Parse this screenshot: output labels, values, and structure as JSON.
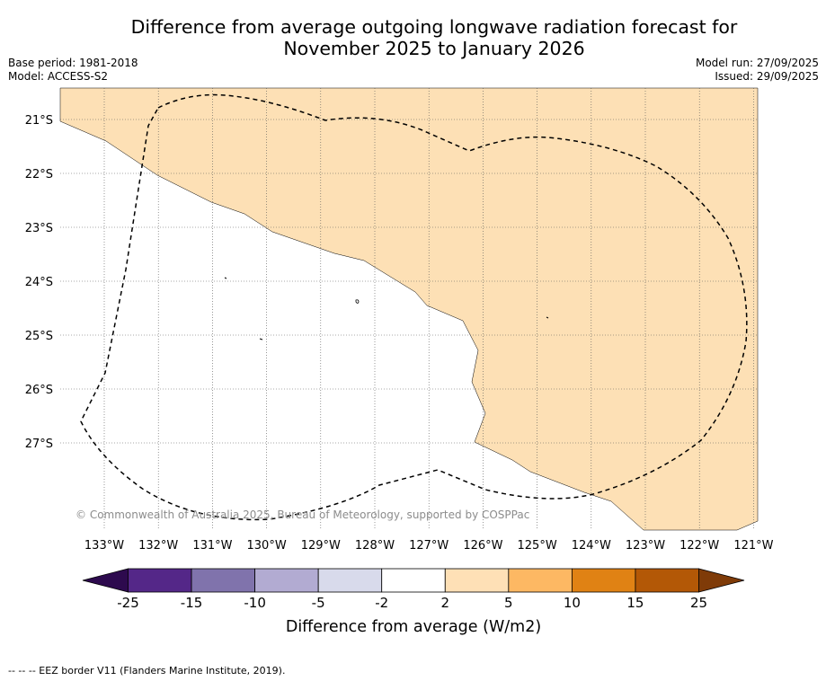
{
  "title": {
    "line1": "Difference from average outgoing longwave radiation forecast for",
    "line2": "November 2025 to January 2026"
  },
  "meta": {
    "base_period": "Base period: 1981-2018",
    "model": "Model: ACCESS-S2",
    "model_run": "Model run: 27/09/2025",
    "issued": "Issued: 29/09/2025"
  },
  "map": {
    "lat_labels": [
      "21°S",
      "22°S",
      "23°S",
      "24°S",
      "25°S",
      "26°S",
      "27°S"
    ],
    "lon_labels": [
      "133°W",
      "132°W",
      "131°W",
      "130°W",
      "129°W",
      "128°W",
      "127°W",
      "126°W",
      "125°W",
      "124°W",
      "123°W",
      "122°W",
      "121°W"
    ],
    "copyright": "© Commonwealth of Australia 2025, Bureau of Meteorology, supported by COSPPac",
    "anomaly_region_color": "#fde0b5",
    "anomaly_region_category": "2 to 5"
  },
  "legend": {
    "title": "Difference from average (W/m2)",
    "tick_labels": [
      "-25",
      "-15",
      "-10",
      "-5",
      "-2",
      "2",
      "5",
      "10",
      "15",
      "25"
    ],
    "colors": [
      "#2d0a4e",
      "#542788",
      "#8073ac",
      "#b2abd2",
      "#d8daeb",
      "#ffffff",
      "#fee0b6",
      "#fdb863",
      "#e08214",
      "#b35806",
      "#7f3b08"
    ]
  },
  "footnote": "--  --  -- EEZ border V11 (Flanders Marine Institute, 2019)."
}
